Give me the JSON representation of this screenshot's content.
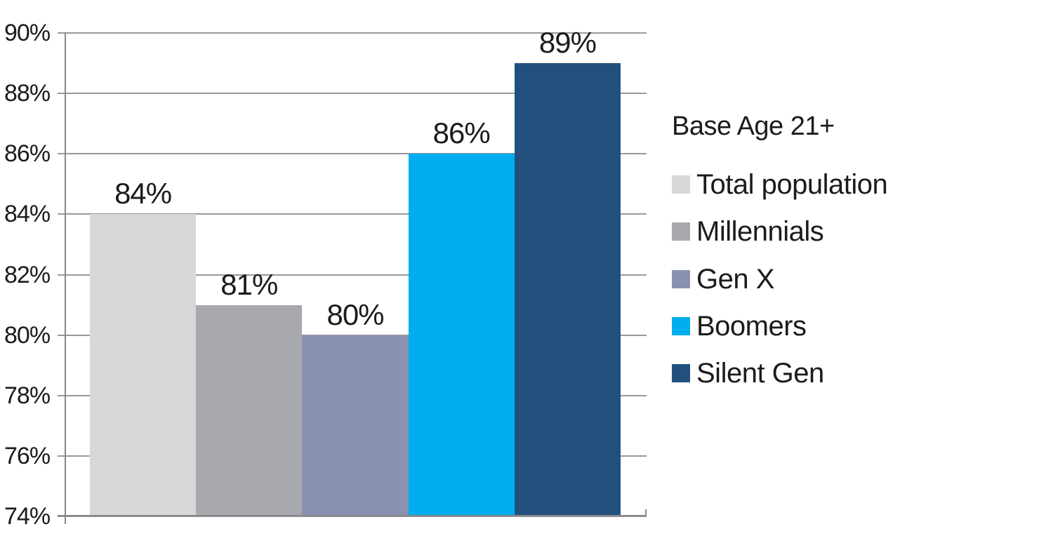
{
  "chart_data": {
    "type": "bar",
    "legend_title": "Base Age 21+",
    "categories": [
      "Total population",
      "Millennials",
      "Gen X",
      "Boomers",
      "Silent Gen"
    ],
    "values": [
      84,
      81,
      80,
      86,
      89
    ],
    "data_labels": [
      "84%",
      "81%",
      "80%",
      "86%",
      "89%"
    ],
    "colors": [
      "#d6d8da",
      "#a7a9ac",
      "#8a92b2",
      "#00adee",
      "#21507e"
    ],
    "ylim": [
      74,
      90
    ],
    "ytick_step": 2,
    "ytick_labels": [
      "74%",
      "76%",
      "78%",
      "80%",
      "82%",
      "84%",
      "86%",
      "88%",
      "90%"
    ],
    "grid": true,
    "legend_position": "right",
    "background_color": "#ffffff",
    "text_color": "#1b1b1b",
    "gridline_color": "#97999c",
    "axis_color": "#85878b"
  }
}
